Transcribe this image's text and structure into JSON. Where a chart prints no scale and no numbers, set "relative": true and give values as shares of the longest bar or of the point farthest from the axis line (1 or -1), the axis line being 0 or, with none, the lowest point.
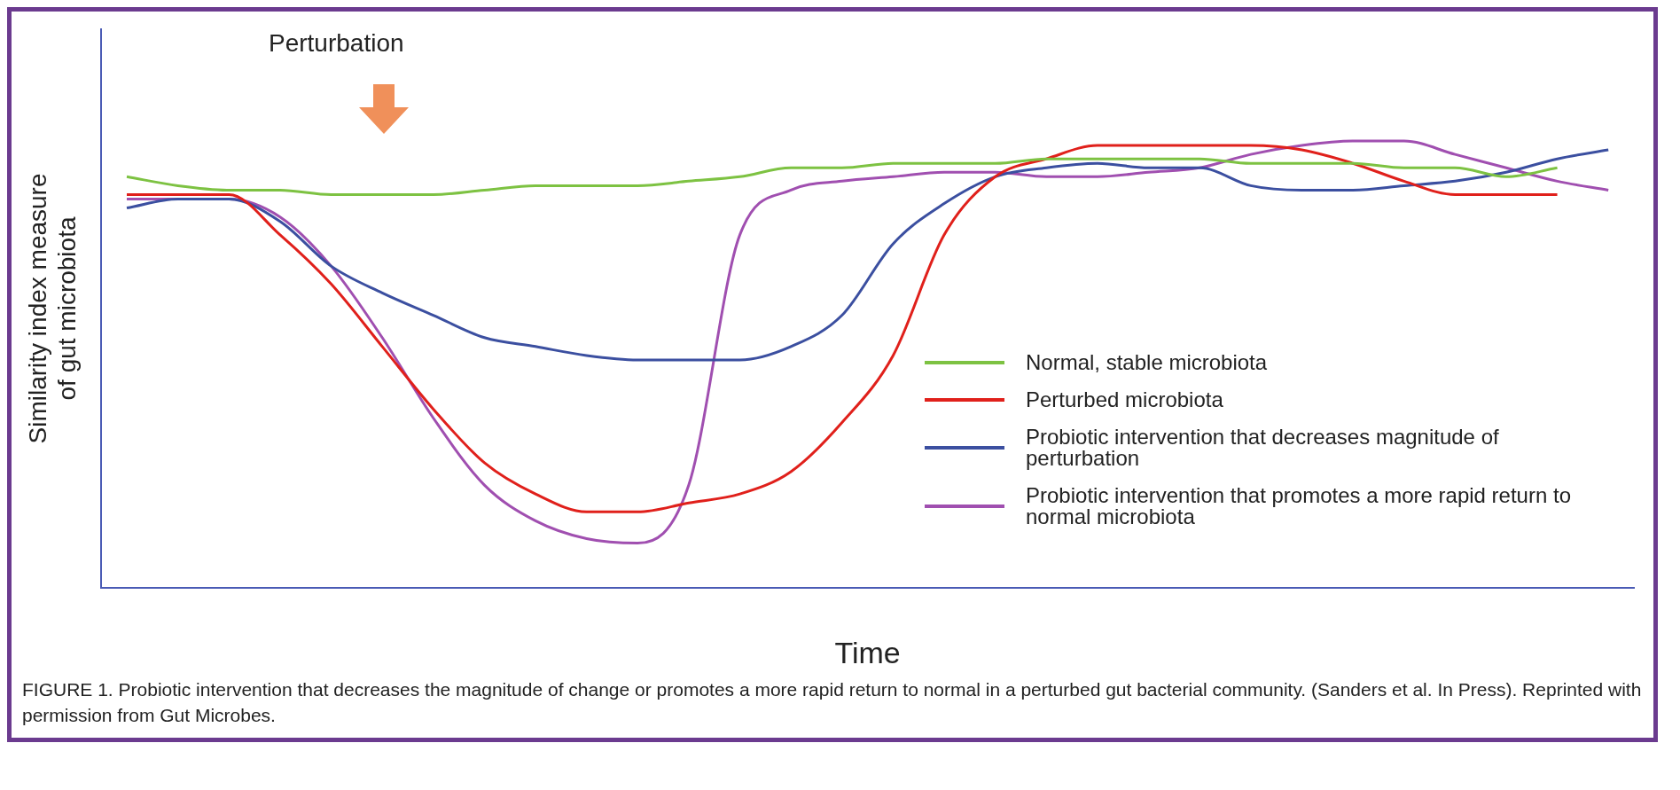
{
  "chart_data": {
    "type": "line",
    "relative": true,
    "xlabel": "Time",
    "ylabel": "Similarity index measure of gut microbiota",
    "categories": [
      null,
      null,
      null,
      null,
      null,
      null,
      null,
      null,
      null,
      null,
      null,
      null,
      null,
      null,
      null,
      null,
      null,
      null,
      null,
      null,
      null,
      null,
      null,
      null,
      null,
      null,
      null,
      null,
      null,
      null
    ],
    "series": [
      {
        "name": "Normal, stable microbiota",
        "color": "#7dc242",
        "values": [
          0.92,
          0.9,
          0.89,
          0.89,
          0.88,
          0.88,
          0.88,
          0.89,
          0.9,
          0.9,
          0.9,
          0.91,
          0.92,
          0.94,
          0.94,
          0.95,
          0.95,
          0.95,
          0.96,
          0.96,
          0.96,
          0.96,
          0.95,
          0.95,
          0.95,
          0.94,
          0.94,
          0.92,
          0.94,
          null
        ]
      },
      {
        "name": "Perturbed microbiota",
        "color": "#e0201b",
        "values": [
          0.88,
          0.88,
          0.88,
          0.79,
          0.68,
          0.54,
          0.4,
          0.28,
          0.21,
          0.17,
          0.17,
          0.19,
          0.21,
          0.26,
          0.37,
          0.52,
          0.79,
          0.92,
          0.96,
          0.99,
          0.99,
          0.99,
          0.99,
          0.98,
          0.95,
          0.91,
          0.88,
          0.88,
          0.88,
          null
        ]
      },
      {
        "name": "Probiotic intervention that decreases magnitude of perturbation",
        "color": "#3b4fa0",
        "values": [
          0.85,
          0.87,
          0.87,
          0.82,
          0.72,
          0.66,
          0.61,
          0.56,
          0.54,
          0.52,
          0.51,
          0.51,
          0.51,
          0.54,
          0.61,
          0.77,
          0.86,
          0.92,
          0.94,
          0.95,
          0.94,
          0.94,
          0.9,
          0.89,
          0.89,
          0.9,
          0.91,
          0.93,
          0.96,
          0.98
        ]
      },
      {
        "name": "Probiotic intervention that promotes a more rapid return to normal microbiota",
        "color": "#a04fb0",
        "values": [
          0.87,
          0.87,
          0.87,
          0.83,
          0.72,
          0.56,
          0.38,
          0.23,
          0.15,
          0.11,
          0.1,
          0.23,
          0.79,
          0.89,
          0.91,
          0.92,
          0.93,
          0.93,
          0.92,
          0.92,
          0.93,
          0.94,
          0.97,
          0.99,
          1,
          1,
          0.97,
          0.94,
          0.91,
          0.89
        ]
      }
    ],
    "legend": "bottom right",
    "grid": false,
    "marker": "none",
    "line_style": "solid",
    "annotations": [
      "Perturbation",
      "FIGURE 1. Probiotic intervention that decreases the magnitude of change or promotes a more rapid return to normal in a perturbed gut bacterial community. (Sanders et al. In Press). Reprinted with permission from Gut Microbes."
    ]
  }
}
